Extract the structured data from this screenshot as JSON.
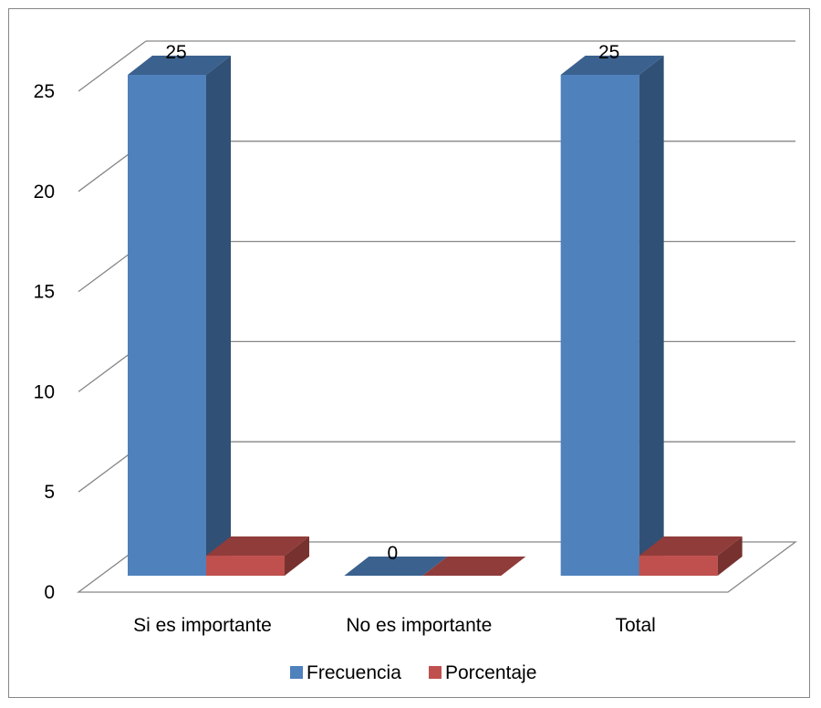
{
  "chart_data": {
    "type": "bar",
    "categories": [
      "Si es importante",
      "No es importante",
      "Total"
    ],
    "series": [
      {
        "name": "Frecuencia",
        "values": [
          25,
          0,
          25
        ],
        "color": "#4F81BD",
        "data_labels": [
          "25",
          "0",
          "25"
        ]
      },
      {
        "name": "Porcentaje",
        "values": [
          1,
          0,
          1
        ],
        "color": "#C0504D"
      }
    ],
    "yticks": [
      "0",
      "5",
      "10",
      "15",
      "20",
      "25"
    ],
    "ylim": [
      0,
      25
    ],
    "grid": true,
    "legend": "bottom",
    "style": "3d-clustered-column"
  }
}
